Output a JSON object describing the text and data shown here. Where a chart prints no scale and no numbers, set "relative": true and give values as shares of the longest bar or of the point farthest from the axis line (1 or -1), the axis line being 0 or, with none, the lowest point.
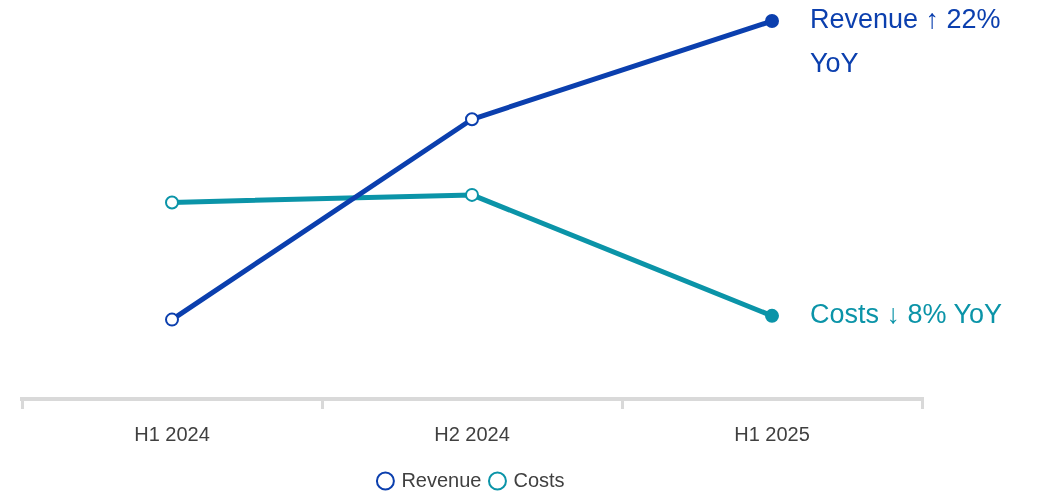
{
  "chart_data": {
    "type": "line",
    "relative": true,
    "categories": [
      "H1 2024",
      "H2 2024",
      "H1 2025"
    ],
    "series": [
      {
        "name": "Revenue",
        "color": "#0b3fae",
        "values": [
          0.21,
          0.74,
          1
        ]
      },
      {
        "name": "Costs",
        "color": "#0b94a8",
        "values": [
          0.52,
          0.54,
          0.22
        ]
      }
    ],
    "marker": "circle",
    "legend": "bottom",
    "annotations": [
      {
        "text": "Revenue ↑ 22% YoY",
        "x": "H1 2025",
        "y": 1
      },
      {
        "text": "Costs ↓ 8% YoY",
        "x": "H1 2025",
        "y": 0.22
      }
    ]
  }
}
